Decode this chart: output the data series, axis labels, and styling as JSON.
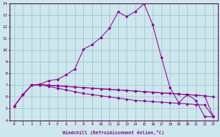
{
  "xlabel": "Windchill (Refroidissement éolien,°C)",
  "xlim": [
    -0.5,
    23.5
  ],
  "ylim": [
    4,
    14
  ],
  "xticks": [
    0,
    1,
    2,
    3,
    4,
    5,
    6,
    7,
    8,
    9,
    10,
    11,
    12,
    13,
    14,
    15,
    16,
    17,
    18,
    19,
    20,
    21,
    22,
    23
  ],
  "yticks": [
    4,
    5,
    6,
    7,
    8,
    9,
    10,
    11,
    12,
    13,
    14
  ],
  "bg_color": "#cce8ec",
  "line_color": "#990099",
  "grid_color": "#99bbcc",
  "curve_x": [
    0,
    1,
    2,
    3,
    4,
    5,
    6,
    7,
    8,
    9,
    10,
    11,
    12,
    13,
    14,
    15,
    16,
    17,
    18,
    19,
    20,
    21,
    22,
    23
  ],
  "curve_y": [
    5.2,
    6.2,
    7.0,
    7.1,
    7.4,
    7.5,
    7.9,
    8.4,
    10.1,
    10.5,
    11.1,
    11.9,
    13.3,
    12.9,
    13.35,
    14.0,
    12.2,
    9.4,
    6.8,
    5.5,
    6.2,
    5.7,
    4.3,
    4.3
  ],
  "flat1_x": [
    0,
    1,
    2,
    3,
    4,
    5,
    6,
    7,
    8,
    9,
    10,
    11,
    12,
    13,
    14,
    15,
    16,
    17,
    18,
    19,
    20,
    21,
    22,
    23
  ],
  "flat1_y": [
    5.2,
    6.2,
    7.0,
    7.05,
    7.0,
    6.95,
    6.9,
    6.85,
    6.8,
    6.75,
    6.7,
    6.65,
    6.6,
    6.55,
    6.5,
    6.45,
    6.4,
    6.35,
    6.3,
    6.25,
    6.2,
    6.15,
    6.1,
    6.0
  ],
  "flat2_x": [
    0,
    1,
    2,
    3,
    4,
    5,
    6,
    7,
    8,
    9,
    10,
    11,
    12,
    13,
    14,
    15,
    16,
    17,
    18,
    19,
    20,
    21,
    22,
    23
  ],
  "flat2_y": [
    5.2,
    6.2,
    7.0,
    7.05,
    7.0,
    6.95,
    6.9,
    6.85,
    6.8,
    6.75,
    6.7,
    6.65,
    6.6,
    6.55,
    6.5,
    6.45,
    6.4,
    6.35,
    6.3,
    6.25,
    6.2,
    6.15,
    6.1,
    4.3
  ],
  "flat3_x": [
    0,
    1,
    2,
    3,
    4,
    5,
    6,
    7,
    8,
    9,
    10,
    11,
    12,
    13,
    14,
    15,
    16,
    17,
    18,
    19,
    20,
    21,
    22,
    23
  ],
  "flat3_y": [
    5.2,
    6.2,
    7.0,
    7.05,
    6.9,
    6.75,
    6.6,
    6.45,
    6.3,
    6.2,
    6.1,
    6.0,
    5.9,
    5.8,
    5.7,
    5.65,
    5.6,
    5.55,
    5.5,
    5.45,
    5.4,
    5.35,
    5.3,
    4.3
  ]
}
